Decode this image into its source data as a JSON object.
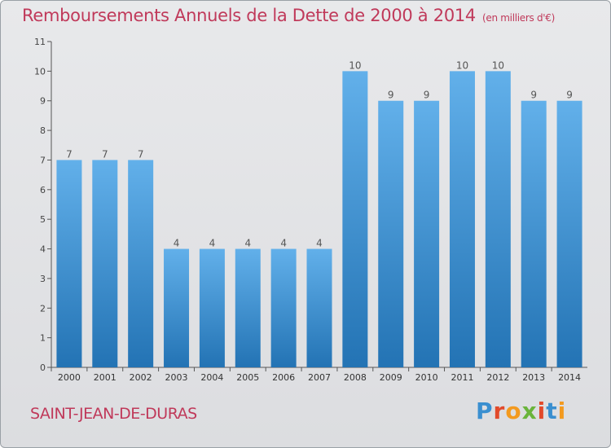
{
  "title": "Remboursements Annuels de la Dette de 2000 à 2014",
  "unit": "(en milliers d'€)",
  "commune": "SAINT-JEAN-DE-DURAS",
  "logo": {
    "letters": [
      "P",
      "r",
      "o",
      "x",
      "i",
      "t",
      "i"
    ],
    "colors": [
      "#3a8fd0",
      "#e24a2b",
      "#f39a1f",
      "#6ab43b",
      "#e24a2b",
      "#3a8fd0",
      "#f39a1f"
    ]
  },
  "colors": {
    "bar_top": "#62b0ea",
    "bar_bottom": "#2373b4",
    "accent": "#c0395a"
  },
  "chart_data": {
    "type": "bar",
    "categories": [
      "2000",
      "2001",
      "2002",
      "2003",
      "2004",
      "2005",
      "2006",
      "2007",
      "2008",
      "2009",
      "2010",
      "2011",
      "2012",
      "2013",
      "2014"
    ],
    "values": [
      7,
      7,
      7,
      4,
      4,
      4,
      4,
      4,
      10,
      9,
      9,
      10,
      10,
      9,
      9
    ],
    "y_ticks": [
      "0",
      "1",
      "2",
      "3",
      "4",
      "5",
      "6",
      "7",
      "8",
      "9",
      "10",
      "11"
    ],
    "ylim": [
      0,
      11
    ],
    "grid": false,
    "data_labels": true
  }
}
